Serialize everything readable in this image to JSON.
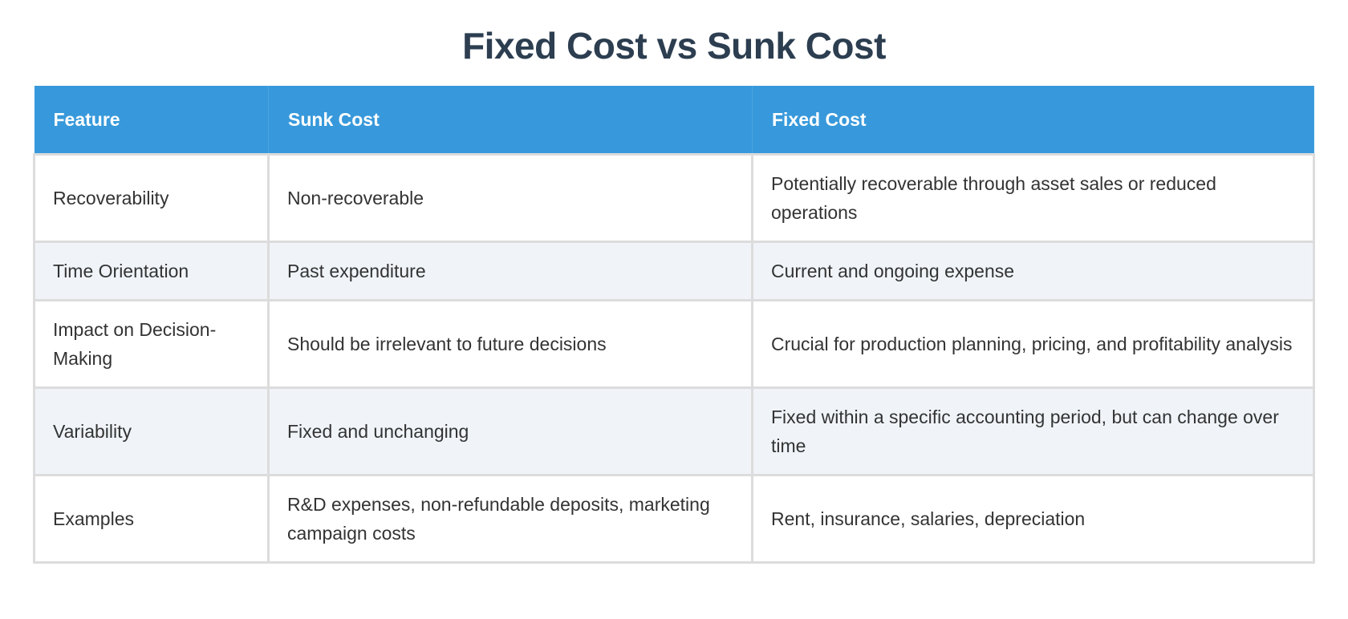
{
  "title": "Fixed Cost vs Sunk Cost",
  "headers": [
    "Feature",
    "Sunk Cost",
    "Fixed Cost"
  ],
  "rows": [
    [
      "Recoverability",
      "Non-recoverable",
      "Potentially recoverable through asset sales or reduced operations"
    ],
    [
      "Time Orientation",
      "Past expenditure",
      "Current and ongoing expense"
    ],
    [
      "Impact on Decision-Making",
      "Should be irrelevant to future decisions",
      "Crucial for production planning, pricing, and profitability analysis"
    ],
    [
      "Variability",
      "Fixed and unchanging",
      "Fixed within a specific accounting period, but can change over time"
    ],
    [
      "Examples",
      "R&D expenses, non-refundable deposits, marketing campaign costs",
      "Rent, insurance, salaries, depreciation"
    ]
  ],
  "colors": {
    "header_bg": "#3799db",
    "title": "#2c3e50",
    "alt_row": "#f0f4f9"
  }
}
